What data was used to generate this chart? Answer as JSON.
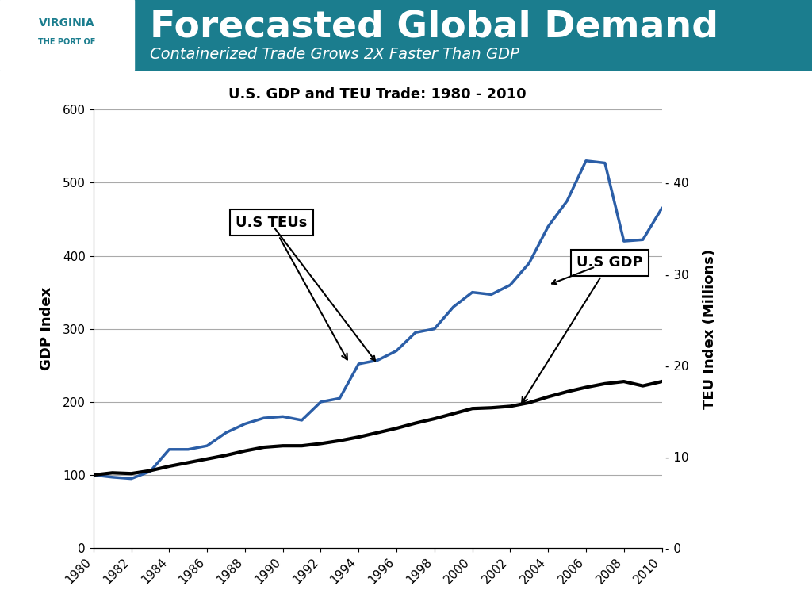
{
  "title": "U.S. GDP and TEU Trade: 1980 - 2010",
  "header_title": "Forecasted Global Demand",
  "header_subtitle": "Containerized Trade Grows 2X Faster Than GDP",
  "header_bg_color": "#1b7d8e",
  "ylabel_left": "GDP Index",
  "ylabel_right": "TEU Index (Millions)",
  "ylim_left": [
    0,
    600
  ],
  "yticks_left": [
    0,
    100,
    200,
    300,
    400,
    500,
    600
  ],
  "years": [
    1980,
    1981,
    1982,
    1983,
    1984,
    1985,
    1986,
    1987,
    1988,
    1989,
    1990,
    1991,
    1992,
    1993,
    1994,
    1995,
    1996,
    1997,
    1998,
    1999,
    2000,
    2001,
    2002,
    2003,
    2004,
    2005,
    2006,
    2007,
    2008,
    2009,
    2010
  ],
  "gdp_index": [
    100,
    103,
    102,
    106,
    112,
    117,
    122,
    127,
    133,
    138,
    140,
    140,
    143,
    147,
    152,
    158,
    164,
    171,
    177,
    184,
    191,
    192,
    194,
    199,
    207,
    214,
    220,
    225,
    228,
    222,
    228
  ],
  "teu_index": [
    100,
    97,
    95,
    105,
    135,
    135,
    140,
    158,
    170,
    178,
    180,
    175,
    200,
    205,
    252,
    257,
    270,
    295,
    300,
    330,
    350,
    347,
    360,
    390,
    440,
    475,
    530,
    527,
    420,
    422,
    465
  ],
  "gdp_color": "#000000",
  "teu_color": "#2b5ea7",
  "line_width": 2.5,
  "annotation_teu_label": "U.S TEUs",
  "annotation_gdp_label": "U.S GDP",
  "bg_color": "#ffffff",
  "plot_bg_color": "#ffffff",
  "grid_color": "#aaaaaa",
  "logo_text1": "THE PORT OF",
  "logo_text2": "VIRGINIA",
  "logo_bg": "#ffffff",
  "logo_color": "#1b7d8e"
}
